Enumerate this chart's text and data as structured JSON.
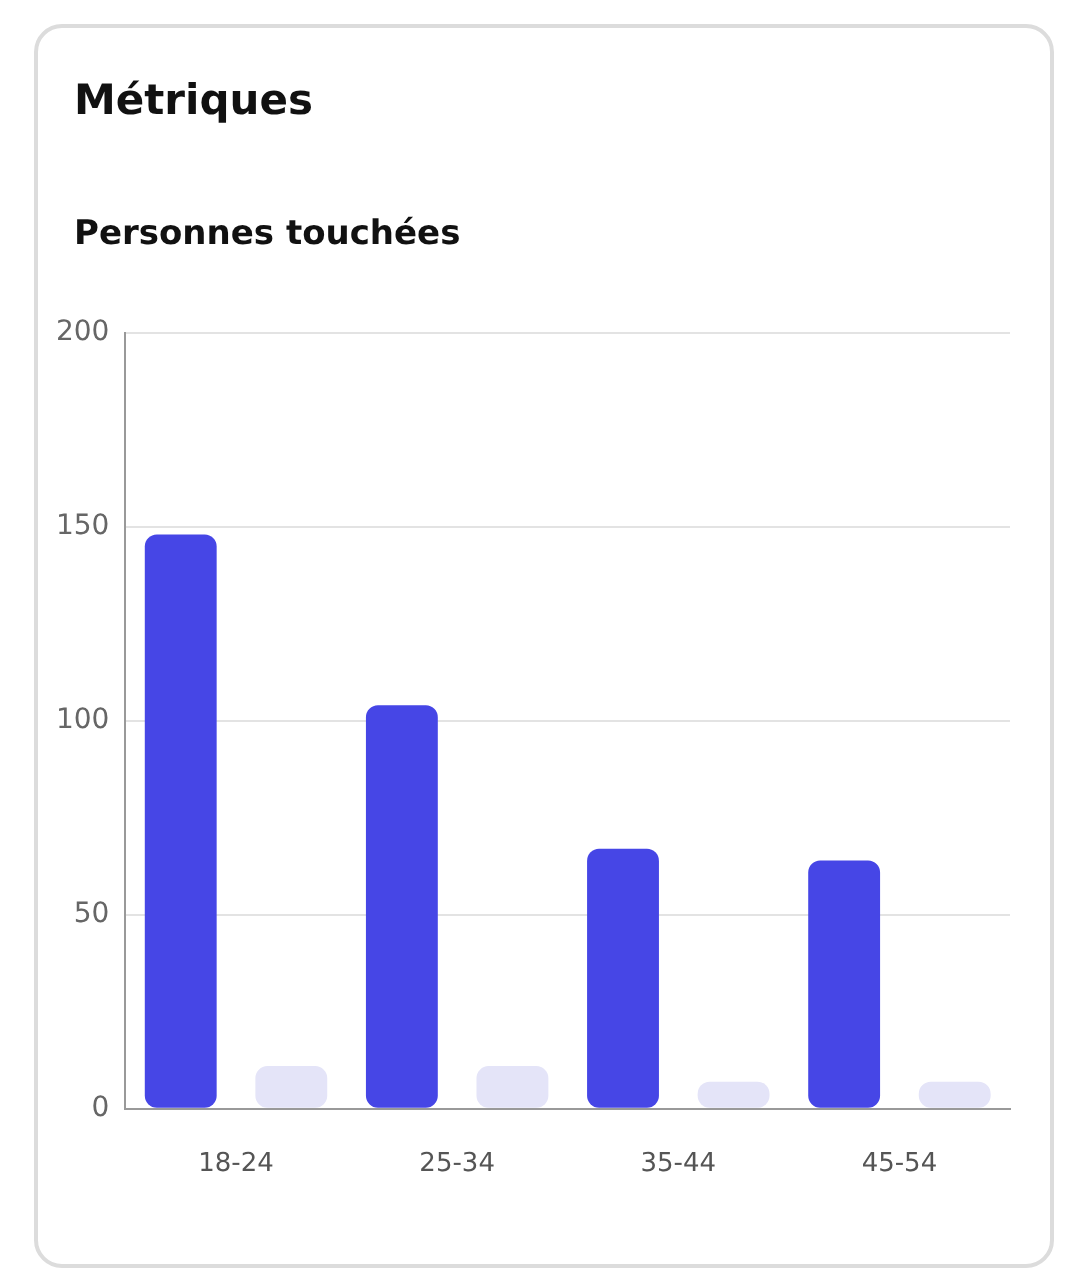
{
  "chart_data": {
    "type": "bar",
    "title": "Métriques",
    "subtitle": "Personnes touchées",
    "categories": [
      "18-24",
      "25-34",
      "35-44",
      "45-54"
    ],
    "series": [
      {
        "color": "#4646e6",
        "values": [
          148,
          104,
          67,
          64
        ]
      },
      {
        "color": "#e4e4f8",
        "values": [
          11,
          11,
          7,
          7
        ]
      }
    ],
    "ylim": [
      0,
      200
    ],
    "yticks": [
      0,
      50,
      100,
      150,
      200
    ],
    "grid": "y",
    "legend": false
  }
}
